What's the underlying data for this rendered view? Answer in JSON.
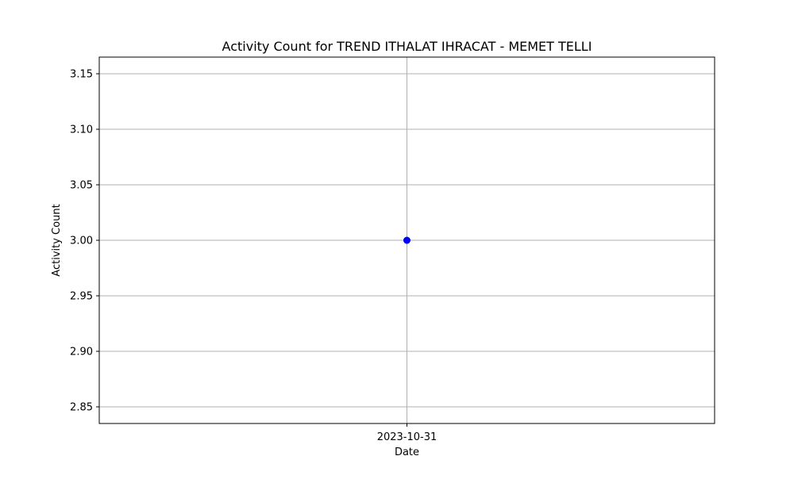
{
  "chart_data": {
    "type": "line",
    "title": "Activity Count for TREND ITHALAT IHRACAT - MEMET TELLI",
    "xlabel": "Date",
    "ylabel": "Activity Count",
    "categories": [
      "2023-10-31"
    ],
    "series": [
      {
        "values": [
          3.0
        ],
        "color": "#0000ff",
        "marker": "circle"
      }
    ],
    "ylim": [
      2.835,
      3.165
    ],
    "yticks": [
      "2.85",
      "2.90",
      "2.95",
      "3.00",
      "3.05",
      "3.10",
      "3.15"
    ],
    "grid": true,
    "legend": "none"
  }
}
